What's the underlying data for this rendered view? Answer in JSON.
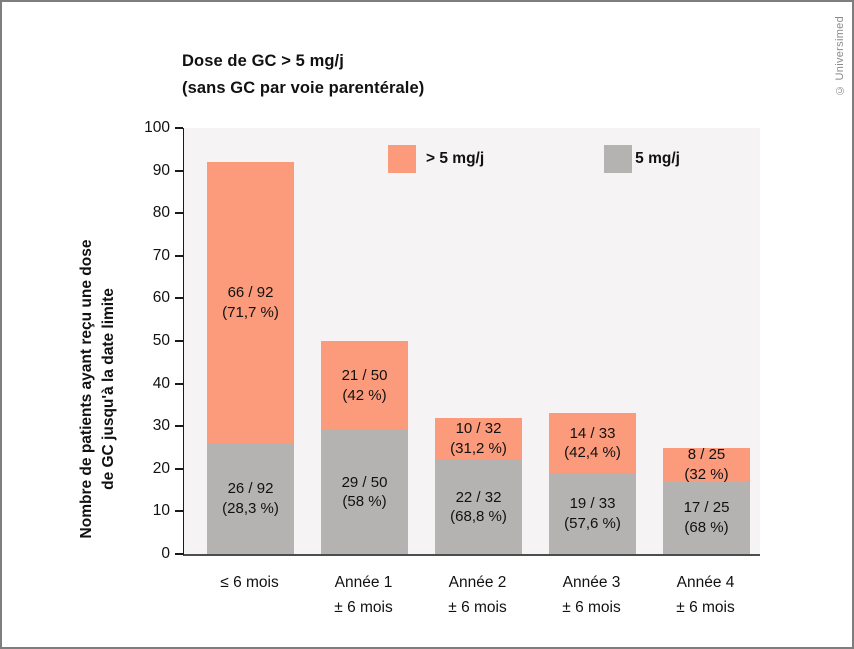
{
  "title": {
    "line1": "Dose de GC > 5 mg/j",
    "line2": "(sans GC par voie parentérale)"
  },
  "credit": "© Universimed",
  "chart_data": {
    "type": "bar",
    "stacked": true,
    "title": "Dose de GC > 5 mg/j (sans GC par voie parentérale)",
    "ylabel": "Nombre de patients ayant reçu une dose de GC jusqu'à la date limite",
    "ylabel_lines": [
      "Nombre de patients ayant reçu une dose",
      "de GC jusqu'à la date limite"
    ],
    "ylim": [
      0,
      100
    ],
    "yticks": [
      0,
      10,
      20,
      30,
      40,
      50,
      60,
      70,
      80,
      90,
      100
    ],
    "grid": false,
    "legend_position": "top-inside",
    "plot_background": "#f5f3f3",
    "categories": [
      "≤ 6 mois",
      "Année 1 ± 6 mois",
      "Année 2 ± 6 mois",
      "Année 3 ± 6 mois",
      "Année 4 ± 6 mois"
    ],
    "category_lines": [
      [
        "≤ 6 mois"
      ],
      [
        "Année 1",
        "± 6 mois"
      ],
      [
        "Année 2",
        "± 6 mois"
      ],
      [
        "Année 3",
        "± 6 mois"
      ],
      [
        "Année 4",
        "± 6 mois"
      ]
    ],
    "totals": [
      92,
      50,
      32,
      33,
      25
    ],
    "series": [
      {
        "name": "> 5 mg/j",
        "color": "#fb9b7b",
        "values": [
          66,
          21,
          10,
          14,
          8
        ],
        "labels": [
          [
            "66 / 92",
            "(71,7 %)"
          ],
          [
            "21 / 50",
            "(42 %)"
          ],
          [
            "10 / 32",
            "(31,2 %)"
          ],
          [
            "14 / 33",
            "(42,4 %)"
          ],
          [
            "8 / 25",
            "(32 %)"
          ]
        ]
      },
      {
        "name": "5 mg/j",
        "color": "#b5b2b2",
        "values": [
          26,
          29,
          22,
          19,
          17
        ],
        "labels": [
          [
            "26 / 92",
            "(28,3 %)"
          ],
          [
            "29 / 50",
            "(58 %)"
          ],
          [
            "22 / 32",
            "(68,8 %)"
          ],
          [
            "19 / 33",
            "(57,6 %)"
          ],
          [
            "17 / 25",
            "(68 %)"
          ]
        ]
      }
    ]
  }
}
